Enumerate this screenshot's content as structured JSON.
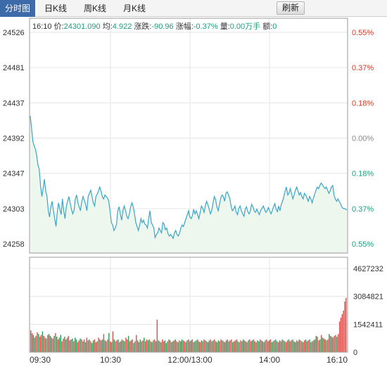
{
  "tabs": [
    {
      "label": "分时图",
      "active": true
    },
    {
      "label": "日K线",
      "active": false
    },
    {
      "label": "周K线",
      "active": false
    },
    {
      "label": "月K线",
      "active": false
    }
  ],
  "refresh_label": "刷新",
  "info": {
    "time": "16:10",
    "price_label": "价:",
    "price": "24301.090",
    "avg_label": "均:",
    "avg": "4.922",
    "change_label": "涨跌:",
    "change": "-90.96",
    "pct_label": "涨幅:",
    "pct": "-0.37%",
    "vol_label": "量:",
    "vol": "0.00万手",
    "amt_label": "额:",
    "amt": "0"
  },
  "colors": {
    "price_line": "#3aa5c8",
    "area_fill": "#eef7ee",
    "axis_left_text": "#333333",
    "pct_up": "#d23a2a",
    "pct_flat": "#888888",
    "pct_down": "#1d9d7a",
    "vol_up": "#d9534f",
    "vol_down": "#2e9e5b"
  },
  "chart_data": {
    "type": "line",
    "x_ticks": [
      "09:30",
      "10:30",
      "12:00/13:00",
      "14:00",
      "16:10"
    ],
    "price_ticks": [
      24526,
      24481,
      24437,
      24392,
      24347,
      24303,
      24258
    ],
    "pct_ticks": [
      "0.55%",
      "0.37%",
      "0.18%",
      "0.00%",
      "0.18%",
      "0.37%",
      "0.55%"
    ],
    "pct_tick_sign": [
      "up",
      "up",
      "up",
      "flat",
      "down",
      "down",
      "down"
    ],
    "price_range": [
      24258,
      24526
    ],
    "previous_close": 24392,
    "volume_ticks": [
      "4627232",
      "3084821",
      "1542411",
      "0"
    ],
    "volume_range": [
      0,
      4627232
    ],
    "price_series": [
      24420,
      24405,
      24388,
      24382,
      24378,
      24370,
      24358,
      24352,
      24332,
      24318,
      24328,
      24340,
      24325,
      24318,
      24300,
      24292,
      24305,
      24312,
      24300,
      24290,
      24280,
      24298,
      24310,
      24302,
      24295,
      24315,
      24300,
      24290,
      24305,
      24312,
      24318,
      24310,
      24302,
      24296,
      24300,
      24315,
      24320,
      24310,
      24305,
      24300,
      24312,
      24318,
      24313,
      24308,
      24300,
      24318,
      24322,
      24326,
      24318,
      24310,
      24306,
      24318,
      24321,
      24325,
      24330,
      24325,
      24318,
      24315,
      24320,
      24318,
      24316,
      24312,
      24300,
      24285,
      24282,
      24275,
      24278,
      24283,
      24300,
      24305,
      24296,
      24288,
      24300,
      24306,
      24300,
      24293,
      24290,
      24296,
      24305,
      24310,
      24305,
      24296,
      24285,
      24280,
      24275,
      24282,
      24290,
      24285,
      24288,
      24283,
      24282,
      24278,
      24290,
      24300,
      24285,
      24282,
      24278,
      24266,
      24270,
      24272,
      24278,
      24275,
      24272,
      24285,
      24283,
      24276,
      24278,
      24271,
      24268,
      24270,
      24268,
      24265,
      24272,
      24275,
      24270,
      24268,
      24272,
      24278,
      24282,
      24280,
      24285,
      24290,
      24295,
      24300,
      24292,
      24290,
      24294,
      24302,
      24296,
      24300,
      24295,
      24290,
      24298,
      24306,
      24303,
      24298,
      24306,
      24312,
      24308,
      24302,
      24296,
      24300,
      24310,
      24318,
      24314,
      24305,
      24300,
      24308,
      24316,
      24320,
      24318,
      24312,
      24322,
      24324,
      24320,
      24316,
      24306,
      24300,
      24302,
      24306,
      24298,
      24295,
      24303,
      24306,
      24300,
      24296,
      24293,
      24302,
      24305,
      24299,
      24296,
      24300,
      24308,
      24305,
      24300,
      24298,
      24302,
      24298,
      24295,
      24300,
      24303,
      24306,
      24302,
      24298,
      24300,
      24304,
      24300,
      24296,
      24300,
      24305,
      24309,
      24302,
      24299,
      24306,
      24300,
      24308,
      24312,
      24318,
      24325,
      24330,
      24320,
      24322,
      24328,
      24322,
      24315,
      24320,
      24326,
      24330,
      24325,
      24320,
      24323,
      24318,
      24315,
      24322,
      24320,
      24316,
      24312,
      24318,
      24315,
      24310,
      24316,
      24321,
      24326,
      24330,
      24328,
      24332,
      24335,
      24333,
      24330,
      24328,
      24330,
      24326,
      24322,
      24325,
      24330,
      24332,
      24320,
      24315,
      24312,
      24315,
      24312,
      24309,
      24305,
      24303,
      24303,
      24302,
      24301
    ],
    "volume_series": [
      1200000,
      1050000,
      950000,
      800000,
      900000,
      1100000,
      1000000,
      850000,
      950000,
      1150000,
      900000,
      800000,
      750000,
      950000,
      1000000,
      900000,
      800000,
      750000,
      900000,
      1050000,
      850000,
      700000,
      800000,
      950000,
      600000,
      750000,
      850000,
      700000,
      800000,
      900000,
      650000,
      700000,
      750000,
      600000,
      800000,
      700000,
      550000,
      650000,
      750000,
      700000,
      600000,
      700000,
      550000,
      800000,
      650000,
      700000,
      600000,
      500000,
      650000,
      700000,
      550000,
      600000,
      800000,
      700000,
      650000,
      700000,
      1000000,
      650000,
      600000,
      700000,
      1050000,
      600000,
      550000,
      1150000,
      700000,
      600000,
      650000,
      700000,
      550000,
      600000,
      700000,
      650000,
      600000,
      800000,
      700000,
      900000,
      600000,
      650000,
      700000,
      500000,
      600000,
      950000,
      650000,
      550000,
      700000,
      600000,
      650000,
      800000,
      600000,
      700000,
      650000,
      700000,
      600000,
      550000,
      650000,
      700000,
      600000,
      1800000,
      650000,
      600000,
      550000,
      700000,
      600000,
      650000,
      500000,
      600000,
      700000,
      650000,
      550000,
      600000,
      650000,
      700000,
      600000,
      550000,
      650000,
      600000,
      700000,
      650000,
      600000,
      550000,
      650000,
      700000,
      600000,
      650000,
      700000,
      550000,
      600000,
      650000,
      700000,
      600000,
      550000,
      650000,
      600000,
      700000,
      650000,
      600000,
      550000,
      650000,
      700000,
      600000,
      650000,
      700000,
      600000,
      550000,
      650000,
      600000,
      700000,
      650000,
      600000,
      550000,
      650000,
      700000,
      600000,
      650000,
      700000,
      550000,
      600000,
      650000,
      700000,
      600000,
      550000,
      650000,
      600000,
      700000,
      650000,
      600000,
      550000,
      650000,
      700000,
      600000,
      650000,
      700000,
      600000,
      550000,
      650000,
      600000,
      700000,
      650000,
      600000,
      550000,
      650000,
      700000,
      600000,
      650000,
      700000,
      550000,
      600000,
      650000,
      700000,
      600000,
      550000,
      650000,
      600000,
      700000,
      650000,
      600000,
      550000,
      650000,
      700000,
      600000,
      650000,
      700000,
      600000,
      550000,
      650000,
      600000,
      700000,
      650000,
      600000,
      550000,
      650000,
      700000,
      600000,
      650000,
      700000,
      550000,
      600000,
      650000,
      700000,
      900000,
      850000,
      650000,
      700000,
      950000,
      800000,
      750000,
      700000,
      650000,
      700000,
      1000000,
      900000,
      850000,
      800000,
      900000,
      950000,
      850000,
      1000000,
      1700000,
      1900000,
      2100000,
      2300000,
      2800000,
      3000000
    ],
    "volume_up_flags": [
      1,
      1,
      0,
      0,
      1,
      1,
      0,
      1,
      1,
      0,
      1,
      0,
      1,
      1,
      0,
      0,
      1,
      1,
      0,
      1,
      0,
      1,
      0,
      0,
      1,
      1,
      0,
      0,
      1,
      1,
      0,
      1,
      0,
      1,
      0,
      0,
      1,
      1,
      0,
      1,
      0,
      1,
      0,
      1,
      1,
      0,
      1,
      0,
      0,
      1,
      1,
      0,
      1,
      1,
      0,
      0,
      1,
      0,
      1,
      1,
      0,
      1,
      0,
      1,
      0,
      1,
      1,
      0,
      1,
      0,
      1,
      0,
      0,
      1,
      1,
      0,
      1,
      0,
      1,
      0,
      1,
      1,
      0,
      1,
      0,
      0,
      1,
      0,
      1,
      1,
      0,
      1,
      0,
      0,
      1,
      1,
      0,
      1,
      0,
      1,
      0,
      1,
      1,
      0,
      0,
      1,
      0,
      1,
      0,
      1,
      1,
      0,
      1,
      0,
      1,
      0,
      0,
      1,
      1,
      0,
      1,
      0,
      1,
      0,
      1,
      1,
      0,
      0,
      1,
      0,
      1,
      0,
      1,
      1,
      0,
      1,
      0,
      0,
      1,
      1,
      0,
      1,
      0,
      1,
      0,
      1,
      1,
      0,
      1,
      0,
      0,
      1,
      0,
      1,
      1,
      0,
      1,
      0,
      1,
      0,
      1,
      1,
      0,
      0,
      1,
      0,
      1,
      0,
      1,
      1,
      0,
      1,
      0,
      1,
      0,
      0,
      1,
      1,
      0,
      1,
      0,
      1,
      1,
      0,
      1,
      0,
      1,
      0,
      0,
      1,
      1,
      0,
      1,
      0,
      1,
      0,
      1,
      1,
      0,
      1,
      0,
      1,
      0,
      0,
      1,
      1,
      0,
      1,
      0,
      1,
      1,
      0,
      1,
      1,
      0,
      1,
      0,
      1,
      0,
      0,
      1,
      1,
      0,
      1,
      0,
      1,
      0,
      1,
      1,
      0,
      1,
      0,
      1,
      1,
      1,
      0,
      1,
      1,
      1,
      1,
      1,
      1,
      1
    ]
  }
}
